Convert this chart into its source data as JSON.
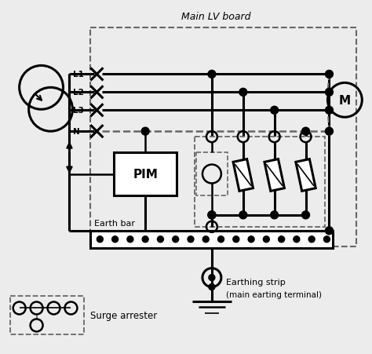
{
  "bg_color": "#ececec",
  "line_color": "#000000",
  "dashed_color": "#666666",
  "figsize": [
    4.74,
    4.52
  ],
  "dpi": 100,
  "title": "Main LV board",
  "earthing_label1": "Earthing strip",
  "earthing_label2": "(main earting terminal)",
  "surge_label": "Surge arrester",
  "earth_bar_label": "Earth bar",
  "pim_label": "PIM",
  "motor_label": "M"
}
